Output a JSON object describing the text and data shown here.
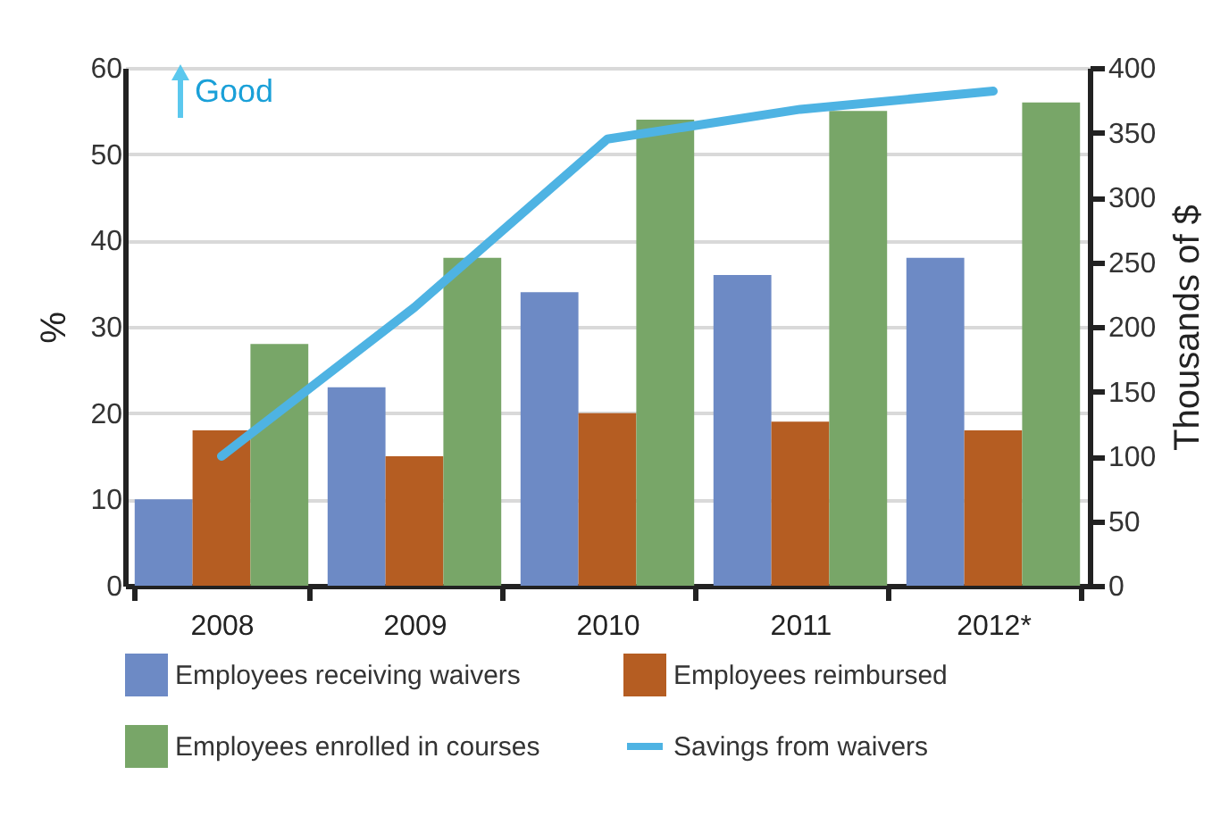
{
  "chart_data": {
    "type": "bar",
    "categories": [
      "2008",
      "2009",
      "2010",
      "2011",
      "2012*"
    ],
    "ylabel": "%",
    "y2label": "Thousands of $",
    "series": [
      {
        "name": "Employees receiving waivers",
        "color": "#6d8ac5",
        "values": [
          10,
          23,
          34,
          36,
          38
        ]
      },
      {
        "name": "Employees reimbursed",
        "color": "#b55d22",
        "values": [
          18,
          15,
          20,
          19,
          18
        ]
      },
      {
        "name": "Employees enrolled in courses",
        "color": "#78a668",
        "values": [
          28,
          38,
          54,
          55,
          56
        ]
      },
      {
        "name": "Savings from waivers",
        "type": "line",
        "axis": "y2",
        "color": "#4eb3e3",
        "values": [
          100,
          215,
          345,
          368,
          382
        ]
      }
    ],
    "ylim": [
      0,
      60
    ],
    "yticks": [
      0,
      10,
      20,
      30,
      40,
      50,
      60
    ],
    "y2lim": [
      0,
      400
    ],
    "y2ticks": [
      0,
      50,
      100,
      150,
      200,
      250,
      300,
      350,
      400
    ],
    "grid": "y",
    "legend": "bottom",
    "marker": "none",
    "line_style": "solid",
    "annotations": [
      "Good"
    ]
  }
}
